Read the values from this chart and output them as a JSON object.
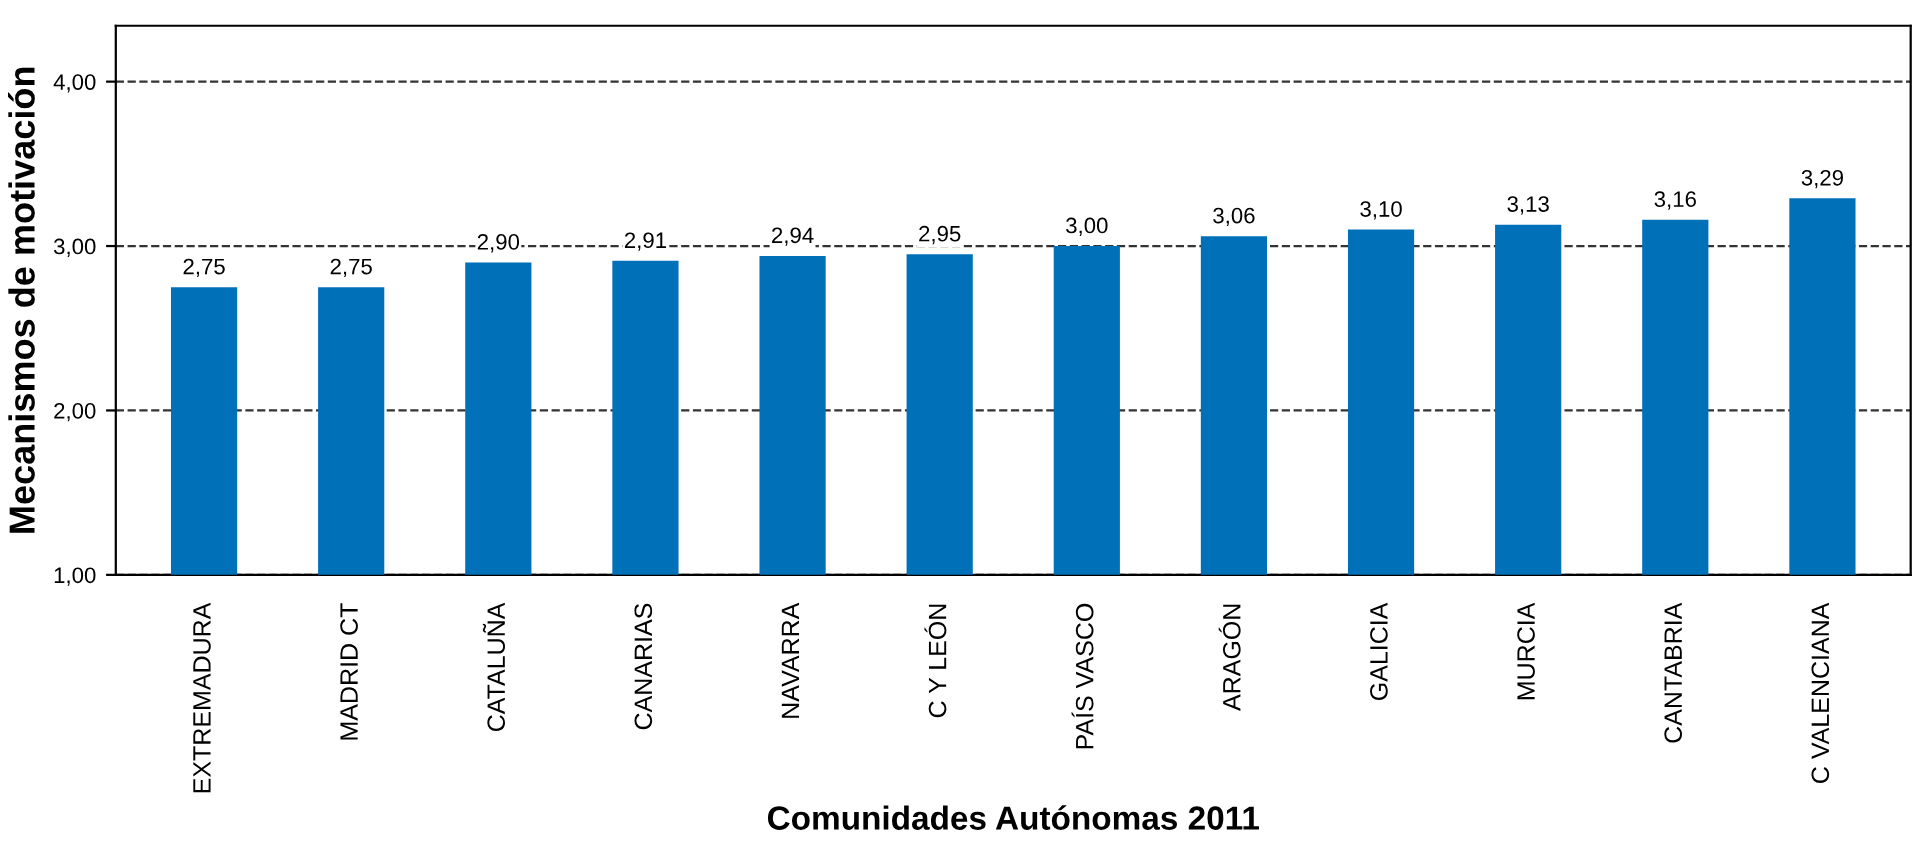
{
  "chart_data": {
    "type": "bar",
    "xlabel": "Comunidades Autónomas 2011",
    "ylabel": "Mecanismos de motivación",
    "categories": [
      "EXTREMADURA",
      "MADRID CT",
      "CATALUÑA",
      "CANARIAS",
      "NAVARRA",
      "C Y LEÓN",
      "PAÍS VASCO",
      "ARAGÓN",
      "GALICIA",
      "MURCIA",
      "CANTABRIA",
      "C VALENCIANA"
    ],
    "values": [
      2.75,
      2.75,
      2.9,
      2.91,
      2.94,
      2.95,
      3.0,
      3.06,
      3.1,
      3.13,
      3.16,
      3.29
    ],
    "value_labels": [
      "2,75",
      "2,75",
      "2,90",
      "2,91",
      "2,94",
      "2,95",
      "3,00",
      "3,06",
      "3,10",
      "3,13",
      "3,16",
      "3,29"
    ],
    "color": "#0070b8",
    "ylim": [
      1,
      4.34
    ],
    "yticks": [
      {
        "value": 1,
        "label": "1,00"
      },
      {
        "value": 2,
        "label": "2,00"
      },
      {
        "value": 3,
        "label": "3,00"
      },
      {
        "value": 4,
        "label": "4,00"
      }
    ],
    "grid": "y",
    "line_style": "dashed"
  }
}
